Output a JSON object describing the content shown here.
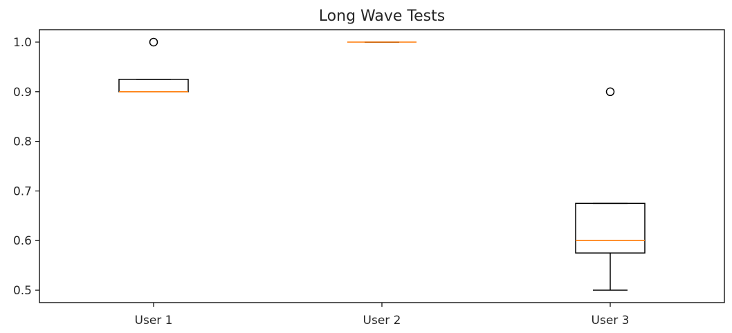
{
  "chart_data": {
    "type": "box",
    "title": "Long Wave Tests",
    "xlabel": "",
    "ylabel": "",
    "ylim": [
      0.475,
      1.025
    ],
    "yticks": [
      0.5,
      0.6,
      0.7,
      0.8,
      0.9,
      1.0
    ],
    "ytick_labels": [
      "0.5",
      "0.6",
      "0.7",
      "0.8",
      "0.9",
      "1.0"
    ],
    "grid": false,
    "colors": {
      "box": "#000000",
      "median": "#ff7f0e",
      "flier": "#000000"
    },
    "categories": [
      "User 1",
      "User 2",
      "User 3"
    ],
    "boxes": [
      {
        "label": "User 1",
        "whisker_low": 0.9,
        "q1": 0.9,
        "median": 0.9,
        "q3": 0.925,
        "whisker_high": 0.925,
        "fliers": [
          1.0
        ]
      },
      {
        "label": "User 2",
        "whisker_low": 1.0,
        "q1": 1.0,
        "median": 1.0,
        "q3": 1.0,
        "whisker_high": 1.0,
        "fliers": []
      },
      {
        "label": "User 3",
        "whisker_low": 0.5,
        "q1": 0.575,
        "median": 0.6,
        "q3": 0.675,
        "whisker_high": 0.675,
        "fliers": [
          0.9
        ]
      }
    ]
  }
}
